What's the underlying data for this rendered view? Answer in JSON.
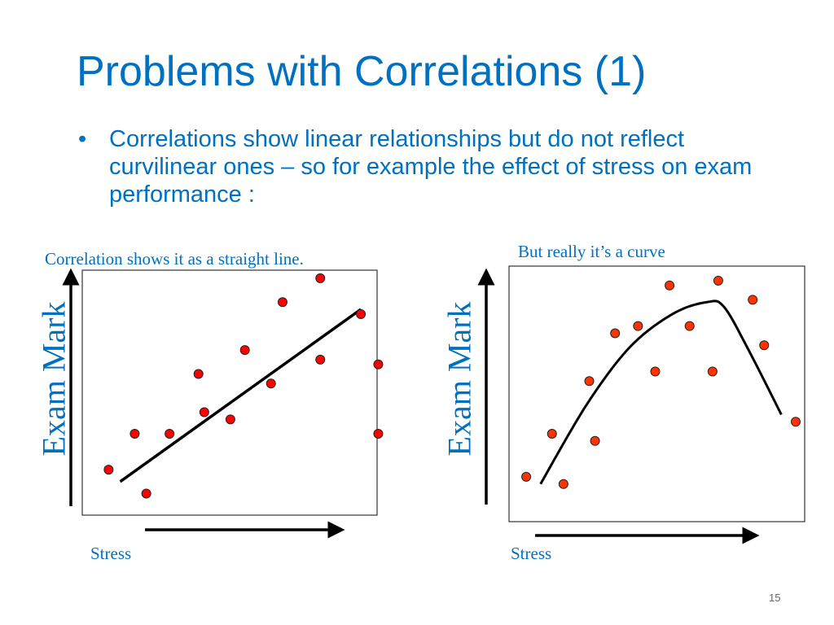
{
  "slide": {
    "title": "Problems with Correlations (1)",
    "bullet": "Correlations show linear relationships but do not reflect curvilinear ones – so for example the effect of stress on exam performance :",
    "bullet_symbol": "•",
    "page_number": "15"
  },
  "colors": {
    "accent": "#0070C0",
    "point_fill": "#FF0000",
    "point_fill_right": "#FF3300",
    "line": "#000000",
    "frame": "#333333",
    "muted": "#666666"
  },
  "chart_data": [
    {
      "type": "scatter",
      "title": "Correlation shows it as a  straight line.",
      "xlabel": "Stress",
      "ylabel": "Exam Mark",
      "xlim": [
        0,
        10
      ],
      "ylim": [
        0,
        10
      ],
      "points": [
        {
          "x": 0.6,
          "y": 1.8
        },
        {
          "x": 1.5,
          "y": 3.3
        },
        {
          "x": 1.9,
          "y": 0.8
        },
        {
          "x": 2.7,
          "y": 3.3
        },
        {
          "x": 3.7,
          "y": 5.8
        },
        {
          "x": 3.9,
          "y": 4.2
        },
        {
          "x": 4.8,
          "y": 3.9
        },
        {
          "x": 5.3,
          "y": 6.8
        },
        {
          "x": 6.2,
          "y": 5.4
        },
        {
          "x": 6.6,
          "y": 8.8
        },
        {
          "x": 7.9,
          "y": 6.4
        },
        {
          "x": 7.9,
          "y": 9.8
        },
        {
          "x": 9.3,
          "y": 8.3
        },
        {
          "x": 9.9,
          "y": 6.2
        },
        {
          "x": 9.9,
          "y": 3.3
        }
      ],
      "fit": {
        "kind": "linear",
        "from": [
          1.0,
          1.3
        ],
        "to": [
          9.3,
          8.5
        ]
      }
    },
    {
      "type": "scatter",
      "title": "But really it’s a curve",
      "xlabel": "Stress",
      "ylabel": "Exam Mark",
      "xlim": [
        0,
        10
      ],
      "ylim": [
        0,
        10
      ],
      "points": [
        {
          "x": 0.4,
          "y": 1.5
        },
        {
          "x": 1.3,
          "y": 3.3
        },
        {
          "x": 1.7,
          "y": 1.2
        },
        {
          "x": 2.6,
          "y": 5.5
        },
        {
          "x": 2.8,
          "y": 3.0
        },
        {
          "x": 3.5,
          "y": 7.5
        },
        {
          "x": 4.3,
          "y": 7.8
        },
        {
          "x": 4.9,
          "y": 5.9
        },
        {
          "x": 5.4,
          "y": 9.5
        },
        {
          "x": 6.1,
          "y": 7.8
        },
        {
          "x": 6.9,
          "y": 5.9
        },
        {
          "x": 7.1,
          "y": 9.7
        },
        {
          "x": 8.3,
          "y": 8.9
        },
        {
          "x": 8.7,
          "y": 7.0
        },
        {
          "x": 9.8,
          "y": 3.8
        }
      ],
      "fit": {
        "kind": "curve",
        "points": [
          [
            0.9,
            1.2
          ],
          [
            2.5,
            4.5
          ],
          [
            4.0,
            6.9
          ],
          [
            5.5,
            8.3
          ],
          [
            6.7,
            8.8
          ],
          [
            7.3,
            8.6
          ],
          [
            8.2,
            6.7
          ],
          [
            9.3,
            4.1
          ]
        ]
      }
    }
  ]
}
